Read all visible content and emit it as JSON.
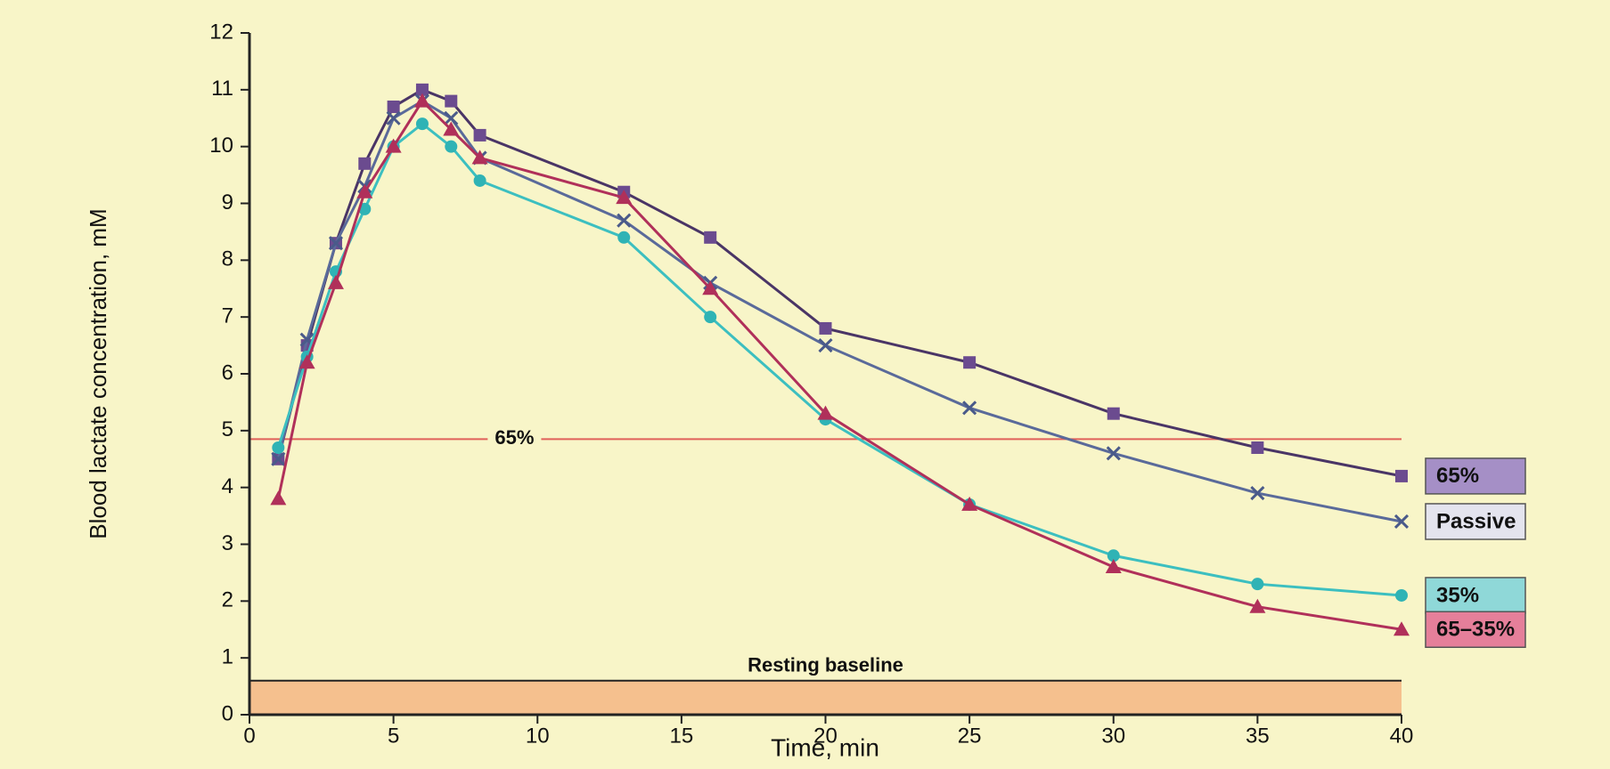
{
  "chart_data": {
    "type": "line",
    "x_label": "Time, min",
    "y_label": "Blood lactate concentration, mM",
    "x": [
      1,
      2,
      3,
      4,
      5,
      6,
      7,
      8,
      13,
      16,
      20,
      25,
      30,
      35,
      40
    ],
    "series": [
      {
        "name": "65%",
        "color": "#4a3566",
        "marker": "square",
        "marker_color": "#6b4b8f",
        "legend_fill": "#a58fc6",
        "values": [
          4.5,
          6.5,
          8.3,
          9.7,
          10.7,
          11.0,
          10.8,
          10.2,
          9.2,
          8.4,
          6.8,
          6.2,
          5.3,
          4.7,
          4.2
        ]
      },
      {
        "name": "Passive",
        "color": "#5a6a9a",
        "marker": "x",
        "marker_color": "#4a5a8a",
        "legend_fill": "#e4e4ee",
        "values": [
          4.5,
          6.6,
          8.3,
          9.3,
          10.5,
          10.8,
          10.5,
          9.8,
          8.7,
          7.6,
          6.5,
          5.4,
          4.6,
          3.9,
          3.4
        ]
      },
      {
        "name": "35%",
        "color": "#3cbfc0",
        "marker": "circle",
        "marker_color": "#2fb3b5",
        "legend_fill": "#8fd8d8",
        "values": [
          4.7,
          6.3,
          7.8,
          8.9,
          10.0,
          10.4,
          10.0,
          9.4,
          8.4,
          7.0,
          5.2,
          3.7,
          2.8,
          2.3,
          2.1
        ]
      },
      {
        "name": "65–35%",
        "color": "#b0305a",
        "marker": "triangle",
        "marker_color": "#b0305a",
        "legend_fill": "#e57f9a",
        "values": [
          3.8,
          6.2,
          7.6,
          9.2,
          10.0,
          10.8,
          10.3,
          9.8,
          9.1,
          7.5,
          5.3,
          3.7,
          2.6,
          1.9,
          1.5
        ]
      }
    ],
    "reference_line": {
      "value": 4.85,
      "label": "65%",
      "color": "#e0605a"
    },
    "band": {
      "from": 0,
      "to": 0.6,
      "label": "Resting baseline",
      "color": "#f5c08e"
    },
    "xlim": [
      0,
      40
    ],
    "xticks": [
      0,
      5,
      10,
      15,
      20,
      25,
      30,
      35,
      40
    ],
    "ylim": [
      0,
      12
    ],
    "yticks": [
      0,
      1,
      2,
      3,
      4,
      5,
      6,
      7,
      8,
      9,
      10,
      11,
      12
    ]
  }
}
